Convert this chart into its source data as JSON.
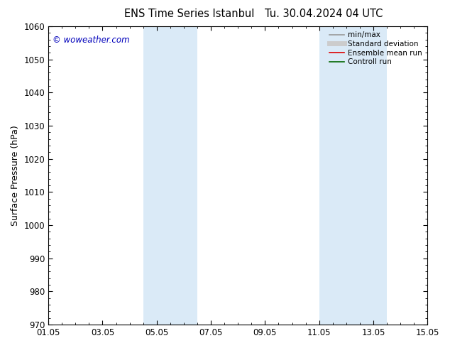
{
  "title_left": "ENS Time Series Istanbul",
  "title_right": "Tu. 30.04.2024 04 UTC",
  "ylabel": "Surface Pressure (hPa)",
  "ylim": [
    970,
    1060
  ],
  "yticks": [
    970,
    980,
    990,
    1000,
    1010,
    1020,
    1030,
    1040,
    1050,
    1060
  ],
  "xlim": [
    0,
    14
  ],
  "xtick_labels": [
    "01.05",
    "03.05",
    "05.05",
    "07.05",
    "09.05",
    "11.05",
    "13.05",
    "15.05"
  ],
  "xtick_positions": [
    0,
    2,
    4,
    6,
    8,
    10,
    12,
    14
  ],
  "shaded_regions": [
    {
      "xstart": 3.5,
      "xend": 5.5
    },
    {
      "xstart": 10.0,
      "xend": 12.5
    }
  ],
  "shaded_color": "#daeaf7",
  "watermark": "© woweather.com",
  "watermark_color": "#0000bb",
  "legend_items": [
    {
      "label": "min/max",
      "color": "#999999",
      "lw": 1.2
    },
    {
      "label": "Standard deviation",
      "color": "#cccccc",
      "lw": 5
    },
    {
      "label": "Ensemble mean run",
      "color": "#dd0000",
      "lw": 1.2
    },
    {
      "label": "Controll run",
      "color": "#006600",
      "lw": 1.2
    }
  ],
  "bg_color": "#ffffff",
  "tick_label_fontsize": 8.5,
  "axis_label_fontsize": 9,
  "title_fontsize": 10.5,
  "legend_fontsize": 7.5,
  "watermark_fontsize": 8.5
}
